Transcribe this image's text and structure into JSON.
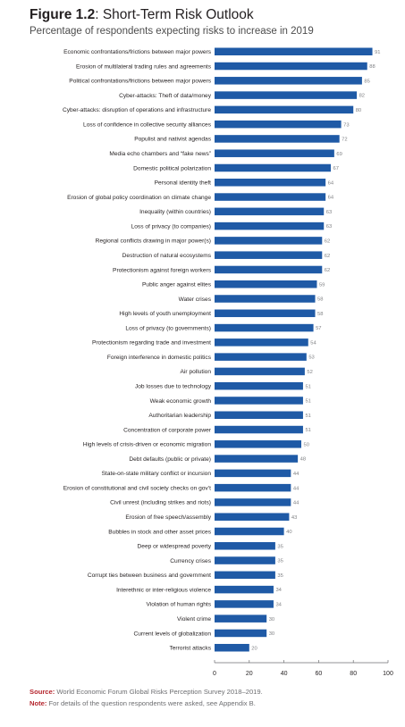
{
  "figure": {
    "number": "Figure 1.2",
    "title": "Short-Term Risk Outlook",
    "subtitle": "Percentage of respondents expecting risks to increase in 2019"
  },
  "footer": {
    "source_label": "Source:",
    "source_text": "World Economic Forum Global Risks Perception Survey 2018–2019.",
    "note_label": "Note:",
    "note_text": "For details of the question respondents were asked, see Appendix B."
  },
  "colors": {
    "bar": "#1f5aa6",
    "axis": "#6d6e71",
    "source_label": "#b5262e"
  },
  "chart_data": {
    "type": "bar",
    "orientation": "horizontal",
    "title": "Short-Term Risk Outlook",
    "xlim": [
      0,
      100
    ],
    "xticks": [
      0,
      20,
      40,
      60,
      80,
      100
    ],
    "grid": false,
    "categories": [
      "Economic confrontations/frictions between major powers",
      "Erosion of multilateral trading rules and agreements",
      "Political confrontations/frictions between major powers",
      "Cyber-attacks: Theft of data/money",
      "Cyber-attacks: disruption of operations and infrastructure",
      "Loss of confidence in collective security alliances",
      "Populist and nativist agendas",
      "Media echo chambers and “fake news”",
      "Domestic political polarization",
      "Personal identity theft",
      "Erosion of global policy coordination on climate change",
      "Inequality (within countries)",
      "Loss of privacy (to companies)",
      "Regional conflicts drawing in major power(s)",
      "Destruction of natural ecosystems",
      "Protectionism against foreign workers",
      "Public anger against elites",
      "Water crises",
      "High levels of youth unemployment",
      "Loss of privacy (to governments)",
      "Protectionism regarding trade and investment",
      "Foreign interference in domestic politics",
      "Air pollution",
      "Job losses due to technology",
      "Weak economic growth",
      "Authoritarian leadership",
      "Concentration of corporate power",
      "High levels of crisis-driven or economic migration",
      "Debt defaults (public or private)",
      "State-on-state military conflict or incursion",
      "Erosion of constitutional and civil society checks on gov’t",
      "Civil unrest (including strikes and riots)",
      "Erosion of free speech/assembly",
      "Bubbles in stock and other asset prices",
      "Deep or widespread poverty",
      "Currency crises",
      "Corrupt ties between business and government",
      "Interethnic or inter-religious violence",
      "Violation of human rights",
      "Violent crime",
      "Current levels of globalization",
      "Terrorist attacks"
    ],
    "values": [
      91,
      88,
      85,
      82,
      80,
      73,
      72,
      69,
      67,
      64,
      64,
      63,
      63,
      62,
      62,
      62,
      59,
      58,
      58,
      57,
      54,
      53,
      52,
      51,
      51,
      51,
      51,
      50,
      48,
      44,
      44,
      44,
      43,
      40,
      35,
      35,
      35,
      34,
      34,
      30,
      30,
      20
    ]
  }
}
